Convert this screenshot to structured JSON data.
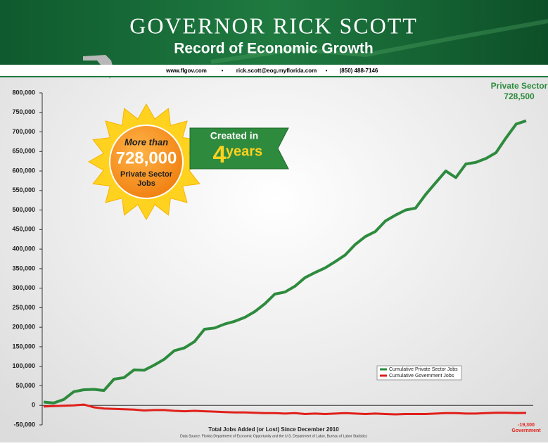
{
  "header": {
    "title": "GOVERNOR RICK SCOTT",
    "subtitle": "Record of Economic Growth",
    "contacts": [
      "www.flgov.com",
      "rick.scott@eog.myflorida.com",
      "(850) 488-7146"
    ]
  },
  "badge": {
    "lines": [
      "More than",
      "728,000",
      "Private Sector",
      "Jobs"
    ]
  },
  "ribbon": {
    "lines": [
      "Created in",
      "4",
      "years"
    ]
  },
  "chart_data": {
    "type": "line",
    "xlabel": "Total Jobs Added (or Lost) Since December 2010",
    "source": "Data Source: Florida Department of Economic Opportunity and the U.S. Department of Labor, Bureau of Labor Statistics",
    "ylim": [
      -50000,
      800000
    ],
    "yticks": [
      {
        "value": -50000,
        "label": "-50,000"
      },
      0,
      {
        "value": 50000,
        "label": "50,000"
      },
      {
        "value": 100000,
        "label": "100,000"
      },
      {
        "value": 150000,
        "label": "150,000"
      },
      {
        "value": 200000,
        "label": "200,000"
      },
      {
        "value": 250000,
        "label": "250,000"
      },
      {
        "value": 300000,
        "label": "300,000"
      },
      {
        "value": 350000,
        "label": "350,000"
      },
      {
        "value": 400000,
        "label": "400,000"
      },
      {
        "value": 450000,
        "label": "450,000"
      },
      {
        "value": 500000,
        "label": "500,000"
      },
      {
        "value": 550000,
        "label": "550,000"
      },
      {
        "value": 600000,
        "label": "600,000"
      },
      {
        "value": 650000,
        "label": "650,000"
      },
      {
        "value": 700000,
        "label": "700,000"
      },
      {
        "value": 750000,
        "label": "750,000"
      },
      {
        "value": 800000,
        "label": "800,000"
      }
    ],
    "legend": "lower right",
    "series": [
      {
        "name": "Cumulative Private Sector Jobs",
        "color": "#2e8b3e",
        "values": [
          8600,
          6000,
          15000,
          35000,
          40000,
          41000,
          38000,
          67000,
          71000,
          91000,
          90000,
          103000,
          118000,
          140000,
          147000,
          163000,
          195000,
          198000,
          208000,
          215000,
          225000,
          240000,
          260000,
          285000,
          290000,
          305000,
          327000,
          340000,
          352000,
          368000,
          385000,
          412000,
          432000,
          445000,
          472000,
          487000,
          500000,
          505000,
          540000,
          570000,
          600000,
          583000,
          618000,
          622000,
          632000,
          647000,
          685000,
          720000,
          728500
        ]
      },
      {
        "name": "Cumulative Government Jobs",
        "color": "#e0201b",
        "values": [
          -3000,
          -2000,
          -1000,
          0,
          2000,
          -5000,
          -8000,
          -9000,
          -10000,
          -11000,
          -13000,
          -12000,
          -12000,
          -14000,
          -15000,
          -14000,
          -15000,
          -16000,
          -17000,
          -18000,
          -18000,
          -19000,
          -20000,
          -20000,
          -21000,
          -20000,
          -22000,
          -21000,
          -22000,
          -21000,
          -20000,
          -21000,
          -22000,
          -21000,
          -22000,
          -23000,
          -22000,
          -22000,
          -22000,
          -21000,
          -20000,
          -20000,
          -21000,
          -21000,
          -20000,
          -19000,
          -19000,
          -19500,
          -19300
        ]
      }
    ],
    "annotations": [
      {
        "text": "Private Sector",
        "series": 0,
        "color": "#2e8b3e"
      },
      {
        "text": "728,500",
        "series": 0,
        "color": "#2e8b3e"
      },
      {
        "text": "-19,300",
        "series": 1,
        "color": "#e0201b"
      },
      {
        "text": "Government",
        "series": 1,
        "color": "#e0201b"
      }
    ]
  }
}
